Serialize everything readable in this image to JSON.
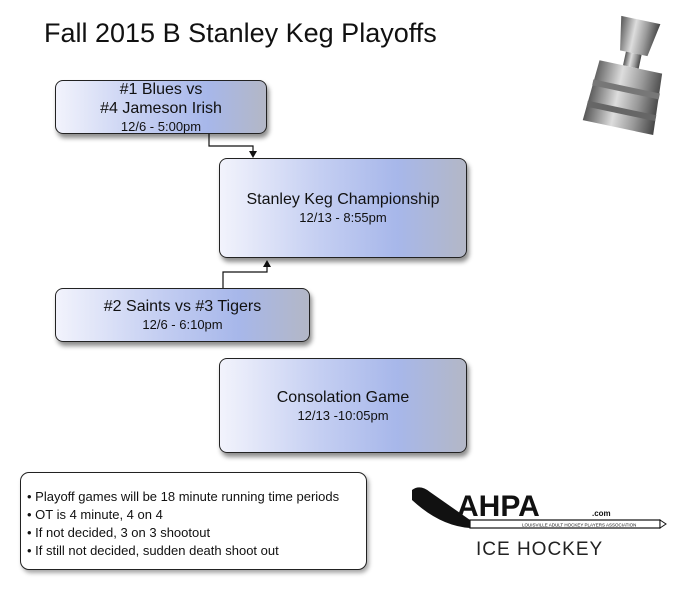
{
  "title": "Fall 2015 B Stanley Keg Playoffs",
  "games": [
    {
      "line1": "#1 Blues vs",
      "line2": "#4 Jameson Irish",
      "time": "12/6 - 5:00pm"
    },
    {
      "line1": "Stanley Keg Championship",
      "time": "12/13 - 8:55pm"
    },
    {
      "line1": "#2 Saints vs #3 Tigers",
      "time": "12/6 - 6:10pm"
    },
    {
      "line1": "Consolation Game",
      "time": "12/13 -10:05pm"
    }
  ],
  "notes": [
    "• Playoff games will be 18 minute running time periods",
    "• OT is 4 minute, 4 on 4",
    "• If not decided, 3 on 3 shootout",
    "• If still not decided, sudden death shoot out"
  ],
  "logo": {
    "name": "AHPA",
    "suffix": ".com",
    "tagline": "LOUISVILLE ADULT HOCKEY PLAYERS ASSOCIATION",
    "subtitle": "ICE HOCKEY"
  }
}
